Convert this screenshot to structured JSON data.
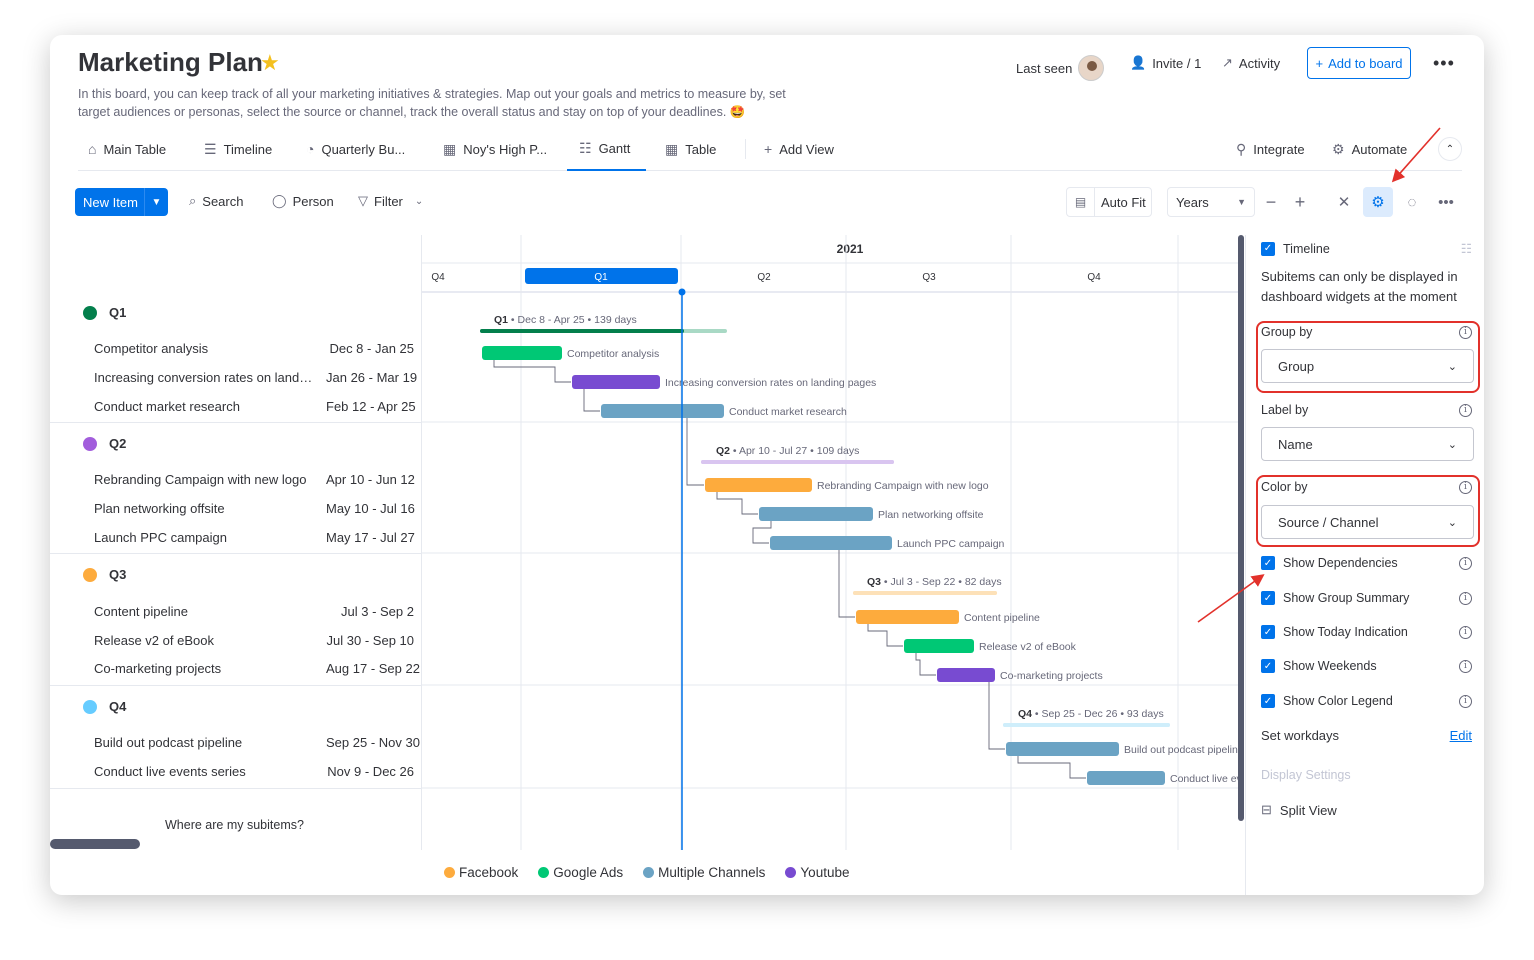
{
  "header": {
    "title": "Marketing Plan",
    "description": "In this board, you can keep track of all your marketing initiatives & strategies. Map out your goals and metrics to measure by, set target audiences or personas, select the source or channel, track the overall status and stay on top of your deadlines. 🤩",
    "last_seen": "Last seen",
    "invite": "Invite / 1",
    "activity": "Activity",
    "add_to_board": "Add to board"
  },
  "tabs": [
    "Main Table",
    "Timeline",
    "Quarterly Bu...",
    "Noy's High P...",
    "Gantt",
    "Table",
    "Add View"
  ],
  "tabs_right": {
    "integrate": "Integrate",
    "automate": "Automate"
  },
  "toolbar": {
    "new_item": "New Item",
    "search": "Search",
    "person": "Person",
    "filter": "Filter",
    "auto_fit": "Auto Fit",
    "years": "Years"
  },
  "groups": [
    {
      "name": "Q1",
      "color": "#037f4c",
      "items": [
        {
          "name": "Competitor analysis",
          "dates": "Dec 8 - Jan 25"
        },
        {
          "name": "Increasing conversion rates on landing pages",
          "dates": "Jan 26 - Mar 19"
        },
        {
          "name": "Conduct market research",
          "dates": "Feb 12 - Apr 25"
        }
      ]
    },
    {
      "name": "Q2",
      "color": "#a25ddc",
      "items": [
        {
          "name": "Rebranding Campaign with new logo",
          "dates": "Apr 10 - Jun 12"
        },
        {
          "name": "Plan networking offsite",
          "dates": "May 10 - Jul 16"
        },
        {
          "name": "Launch PPC campaign",
          "dates": "May 17 - Jul 27"
        }
      ]
    },
    {
      "name": "Q3",
      "color": "#fdab3d",
      "items": [
        {
          "name": "Content pipeline",
          "dates": "Jul 3 - Sep 2"
        },
        {
          "name": "Release v2 of eBook",
          "dates": "Jul 30 - Sep 10"
        },
        {
          "name": "Co-marketing projects",
          "dates": "Aug 17 - Sep 22"
        }
      ]
    },
    {
      "name": "Q4",
      "color": "#66ccff",
      "items": [
        {
          "name": "Build out podcast pipeline",
          "dates": "Sep 25 - Nov 30"
        },
        {
          "name": "Conduct live events series",
          "dates": "Nov 9 - Dec 26"
        }
      ]
    }
  ],
  "subitems_link": "Where are my subitems?",
  "gantt": {
    "year": "2021",
    "quarters": [
      "Q4",
      "Q1",
      "Q2",
      "Q3",
      "Q4"
    ],
    "group_summaries": [
      {
        "label": "Q1",
        "rest": " • Dec 8 - Apr 25 • 139 days"
      },
      {
        "label": "Q2",
        "rest": " • Apr 10 - Jul 27 • 109 days"
      },
      {
        "label": "Q3",
        "rest": " • Jul 3 - Sep 22 • 82 days"
      },
      {
        "label": "Q4",
        "rest": " • Sep 25 - Dec 26 • 93 days"
      }
    ],
    "bar_labels": [
      "Competitor analysis",
      "Increasing conversion rates on landing pages",
      "Conduct market research",
      "Rebranding Campaign with new logo",
      "Plan networking offsite",
      "Launch PPC campaign",
      "Content pipeline",
      "Release v2 of eBook",
      "Co-marketing projects",
      "Build out podcast pipeline",
      "Conduct live events"
    ],
    "bar_channels": [
      "Google Ads",
      "Youtube",
      "Multiple Channels",
      "Facebook",
      "Multiple Channels",
      "Multiple Channels",
      "Facebook",
      "Google Ads",
      "Youtube",
      "Multiple Channels",
      "Multiple Channels"
    ]
  },
  "legend": [
    {
      "name": "Facebook",
      "color": "#fdab3d"
    },
    {
      "name": "Google Ads",
      "color": "#00c875"
    },
    {
      "name": "Multiple Channels",
      "color": "#6ba3c4"
    },
    {
      "name": "Youtube",
      "color": "#784bd1"
    }
  ],
  "panel": {
    "timeline": "Timeline",
    "subitems_note": "Subitems can only be displayed in dashboard widgets at the moment",
    "group_by": "Group by",
    "group_by_value": "Group",
    "label_by": "Label by",
    "label_by_value": "Name",
    "color_by": "Color by",
    "color_by_value": "Source / Channel",
    "toggles": [
      "Show Dependencies",
      "Show Group Summary",
      "Show Today Indication",
      "Show Weekends",
      "Show Color Legend"
    ],
    "set_workdays": "Set workdays",
    "edit": "Edit",
    "display_settings": "Display Settings",
    "split_view": "Split View"
  }
}
